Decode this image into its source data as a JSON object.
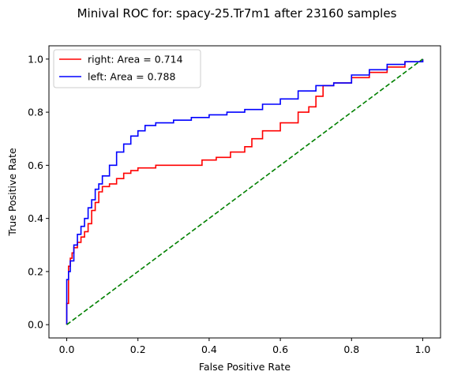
{
  "chart_data": {
    "type": "line",
    "title": "Minival ROC for: spacy-25.Tr7m1 after 23160 samples",
    "xlabel": "False Positive Rate",
    "ylabel": "True Positive Rate",
    "xlim": [
      -0.05,
      1.05
    ],
    "ylim": [
      -0.05,
      1.05
    ],
    "xticks": [
      "0.0",
      "0.2",
      "0.4",
      "0.6",
      "0.8",
      "1.0"
    ],
    "yticks": [
      "0.0",
      "0.2",
      "0.4",
      "0.6",
      "0.8",
      "1.0"
    ],
    "grid": false,
    "legend_position": "top-left",
    "series": [
      {
        "name": "right: Area = 0.714",
        "color": "#ff0000",
        "dashed": false,
        "x": [
          0,
          0,
          0.005,
          0.005,
          0.01,
          0.015,
          0.02,
          0.03,
          0.04,
          0.05,
          0.06,
          0.07,
          0.08,
          0.09,
          0.1,
          0.12,
          0.14,
          0.16,
          0.18,
          0.2,
          0.25,
          0.3,
          0.35,
          0.38,
          0.42,
          0.46,
          0.5,
          0.52,
          0.55,
          0.6,
          0.65,
          0.68,
          0.7,
          0.72,
          0.75,
          0.8,
          0.85,
          0.9,
          0.95,
          1.0
        ],
        "y": [
          0,
          0.08,
          0.18,
          0.22,
          0.25,
          0.27,
          0.29,
          0.31,
          0.33,
          0.35,
          0.38,
          0.43,
          0.46,
          0.5,
          0.52,
          0.53,
          0.55,
          0.57,
          0.58,
          0.59,
          0.6,
          0.6,
          0.6,
          0.62,
          0.63,
          0.65,
          0.67,
          0.7,
          0.73,
          0.76,
          0.8,
          0.82,
          0.86,
          0.9,
          0.91,
          0.93,
          0.95,
          0.97,
          0.99,
          1.0
        ]
      },
      {
        "name": "left: Area = 0.788",
        "color": "#0000ff",
        "dashed": false,
        "x": [
          0,
          0,
          0.005,
          0.01,
          0.02,
          0.03,
          0.04,
          0.05,
          0.06,
          0.07,
          0.08,
          0.09,
          0.1,
          0.12,
          0.14,
          0.16,
          0.18,
          0.2,
          0.22,
          0.25,
          0.3,
          0.35,
          0.4,
          0.45,
          0.5,
          0.55,
          0.6,
          0.65,
          0.7,
          0.75,
          0.8,
          0.85,
          0.9,
          0.95,
          1.0
        ],
        "y": [
          0,
          0.17,
          0.2,
          0.24,
          0.3,
          0.34,
          0.37,
          0.4,
          0.44,
          0.47,
          0.51,
          0.53,
          0.56,
          0.6,
          0.65,
          0.68,
          0.71,
          0.73,
          0.75,
          0.76,
          0.77,
          0.78,
          0.79,
          0.8,
          0.81,
          0.83,
          0.85,
          0.88,
          0.9,
          0.91,
          0.94,
          0.96,
          0.98,
          0.99,
          1.0
        ]
      },
      {
        "name": "",
        "color": "#008000",
        "dashed": true,
        "x": [
          0,
          1
        ],
        "y": [
          0,
          1
        ]
      }
    ]
  }
}
